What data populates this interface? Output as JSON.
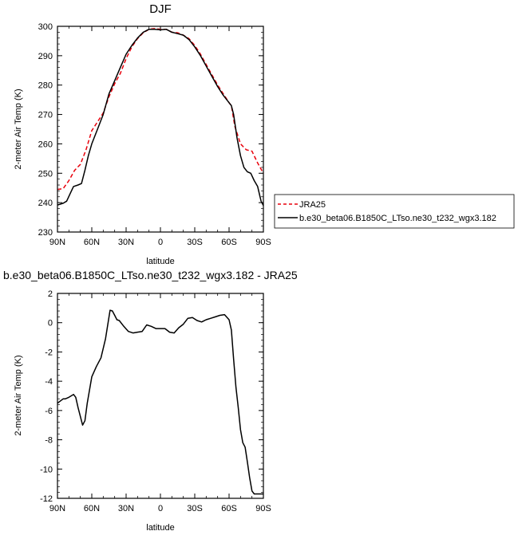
{
  "chart_data": [
    {
      "type": "line",
      "title": "DJF",
      "xlabel": "latitude",
      "ylabel": "2-meter Air Temp (K)",
      "xlim": [
        -90,
        90
      ],
      "ylim": [
        230,
        300
      ],
      "xticks": [
        -90,
        -60,
        -30,
        0,
        30,
        60,
        90
      ],
      "xticklabels": [
        "90N",
        "60N",
        "30N",
        "0",
        "30S",
        "60S",
        "90S"
      ],
      "yticks": [
        230,
        240,
        250,
        260,
        270,
        280,
        290,
        300
      ],
      "legend": {
        "placement": "right",
        "entries": [
          "JRA25",
          "b.e30_beta06.B1850C_LTso.ne30_t232_wgx3.182"
        ]
      },
      "series": [
        {
          "name": "JRA25",
          "color": "#e8000b",
          "dash": true,
          "x": [
            -90,
            -85,
            -80,
            -75,
            -70,
            -65,
            -60,
            -55,
            -50,
            -45,
            -40,
            -35,
            -30,
            -25,
            -20,
            -15,
            -10,
            -5,
            0,
            5,
            10,
            15,
            20,
            25,
            30,
            35,
            40,
            45,
            50,
            55,
            60,
            62,
            65,
            70,
            75,
            80,
            85,
            90
          ],
          "y": [
            244.5,
            244.8,
            247.5,
            251,
            253,
            258,
            264.5,
            267.5,
            270.5,
            276,
            280.5,
            284,
            289,
            293,
            295.8,
            297.8,
            299,
            299.2,
            299,
            299,
            298,
            297.8,
            297,
            295.8,
            293.5,
            290.5,
            287,
            283.5,
            280,
            277,
            274,
            273,
            266,
            260,
            258,
            257.5,
            253.5,
            250
          ]
        },
        {
          "name": "b.e30_beta06.B1850C_LTso.ne30_t232_wgx3.182",
          "color": "#000000",
          "dash": false,
          "x": [
            -90,
            -85,
            -82,
            -79,
            -76,
            -72,
            -69,
            -66,
            -63,
            -60,
            -55,
            -50,
            -45,
            -40,
            -35,
            -30,
            -25,
            -20,
            -15,
            -10,
            -5,
            0,
            5,
            10,
            15,
            20,
            25,
            30,
            35,
            40,
            45,
            50,
            55,
            60,
            62,
            64,
            67,
            70,
            73,
            76,
            79,
            82,
            85,
            88,
            90
          ],
          "y": [
            239.2,
            239.8,
            240.5,
            243,
            245.5,
            246,
            246.5,
            251,
            256,
            260,
            265,
            270,
            277,
            281.5,
            286,
            290.5,
            293.5,
            296,
            298,
            299,
            299,
            298.8,
            299,
            298,
            297.5,
            297,
            295.5,
            293,
            290,
            286.5,
            283,
            279.5,
            276.5,
            274,
            273,
            270,
            262,
            256,
            252,
            250.5,
            250,
            247.5,
            245.5,
            240.5,
            239
          ]
        }
      ]
    },
    {
      "type": "line",
      "title": "b.e30_beta06.B1850C_LTso.ne30_t232_wgx3.182 - JRA25",
      "xlabel": "latitude",
      "ylabel": "2-meter Air Temp (K)",
      "xlim": [
        -90,
        90
      ],
      "ylim": [
        -12,
        2
      ],
      "xticks": [
        -90,
        -60,
        -30,
        0,
        30,
        60,
        90
      ],
      "xticklabels": [
        "90N",
        "60N",
        "30N",
        "0",
        "30S",
        "60S",
        "90S"
      ],
      "yticks": [
        -12,
        -10,
        -8,
        -6,
        -4,
        -2,
        0,
        2
      ],
      "series": [
        {
          "color": "#000000",
          "dash": false,
          "x": [
            -90,
            -85,
            -83,
            -80,
            -76,
            -74,
            -72,
            -68,
            -66,
            -64,
            -60,
            -56,
            -52,
            -48,
            -44,
            -42,
            -40,
            -38,
            -36,
            -32,
            -28,
            -24,
            -20,
            -16,
            -12,
            -8,
            -4,
            0,
            4,
            8,
            12,
            16,
            20,
            24,
            28,
            32,
            36,
            40,
            44,
            48,
            52,
            56,
            60,
            62,
            64,
            66,
            68,
            70,
            72,
            74,
            76,
            78,
            80,
            82,
            84,
            86,
            88,
            90
          ],
          "y": [
            -5.5,
            -5.2,
            -5.2,
            -5.1,
            -4.9,
            -5.1,
            -5.8,
            -7.0,
            -6.7,
            -5.5,
            -3.7,
            -3.0,
            -2.4,
            -1.1,
            0.85,
            0.8,
            0.5,
            0.2,
            0.15,
            -0.25,
            -0.6,
            -0.7,
            -0.65,
            -0.6,
            -0.15,
            -0.25,
            -0.4,
            -0.4,
            -0.4,
            -0.65,
            -0.7,
            -0.35,
            -0.1,
            0.3,
            0.35,
            0.15,
            0.05,
            0.2,
            0.3,
            0.4,
            0.5,
            0.55,
            0.2,
            -0.5,
            -2.5,
            -4.4,
            -5.8,
            -7.3,
            -8.2,
            -8.5,
            -9.5,
            -10.6,
            -11.5,
            -11.7,
            -11.7,
            -11.7,
            -11.7,
            -11.7
          ]
        }
      ]
    }
  ]
}
